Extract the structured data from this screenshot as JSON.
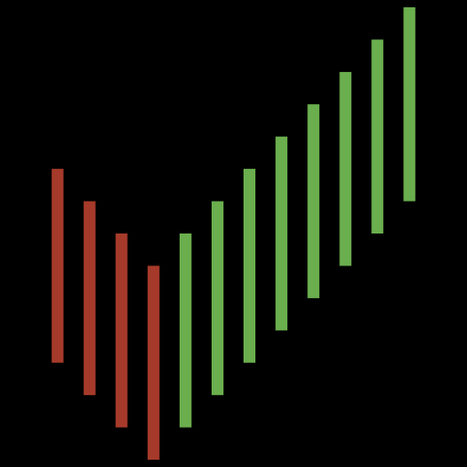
{
  "chart_data": {
    "type": "bar",
    "subtype": "floating-range",
    "grid": false,
    "legend": "none",
    "colors": {
      "background": "#000000",
      "down": "#A63A2A",
      "up": "#6AAE4E"
    },
    "x": [
      1,
      2,
      3,
      4,
      5,
      6,
      7,
      8,
      9,
      10,
      11,
      12
    ],
    "series": [
      {
        "values_low": [
          3.0,
          2.0,
          1.0,
          0.0,
          1.0,
          2.0,
          3.0,
          4.0,
          5.0,
          6.0,
          7.0,
          8.0
        ],
        "values_high": [
          9.0,
          8.0,
          7.0,
          6.0,
          7.0,
          8.0,
          9.0,
          10.0,
          11.0,
          12.0,
          13.0,
          14.0
        ],
        "direction": [
          "down",
          "down",
          "down",
          "down",
          "up",
          "up",
          "up",
          "up",
          "up",
          "up",
          "up",
          "up"
        ]
      }
    ],
    "xlim": [
      0,
      13
    ],
    "ylim": [
      0,
      14
    ]
  }
}
